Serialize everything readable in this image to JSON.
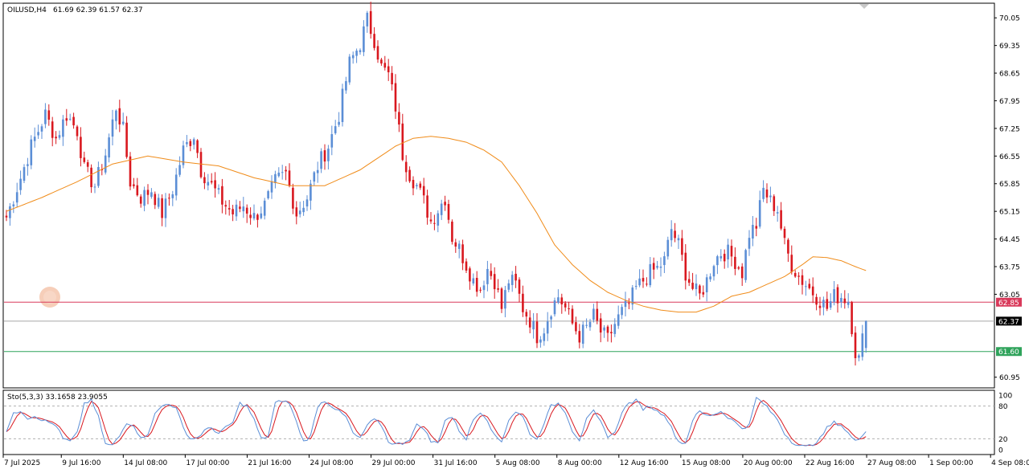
{
  "header": {
    "symbol": "OILUSD,H4",
    "ohlc": "61.69 62.39 61.57 62.37"
  },
  "oscillator": {
    "label": "Sto(5,3,3) 33.1658 23.9055",
    "ticks": [
      "100",
      "80",
      "20",
      "0"
    ],
    "levels": [
      100,
      80,
      20,
      0
    ]
  },
  "colors": {
    "bull": "#5b8ed6",
    "bear": "#d9181f",
    "ma": "#f08c1a",
    "stoch_main": "#5b8ed6",
    "stoch_signal": "#d9181f",
    "resistance": "#d93a5b",
    "current": "#9a9a9a",
    "support": "#2fa35b"
  },
  "price_tags": {
    "resistance": "62.85",
    "current": "62.37",
    "support": "61.60"
  },
  "chart_data": {
    "type": "candlestick",
    "ylim": [
      60.7,
      70.4
    ],
    "y_ticks": [
      "70.05",
      "69.35",
      "68.65",
      "67.95",
      "67.25",
      "66.55",
      "65.85",
      "65.15",
      "64.45",
      "63.75",
      "63.05",
      "60.95"
    ],
    "y_tick_values": [
      70.05,
      69.35,
      68.65,
      67.95,
      67.25,
      66.55,
      65.85,
      65.15,
      64.45,
      63.75,
      63.05,
      60.95
    ],
    "x_ticks": [
      "7 Jul 2025",
      "9 Jul 16:00",
      "14 Jul 08:00",
      "17 Jul 00:00",
      "21 Jul 16:00",
      "24 Jul 08:00",
      "29 Jul 00:00",
      "31 Jul 16:00",
      "5 Aug 08:00",
      "8 Aug 00:00",
      "12 Aug 16:00",
      "15 Aug 08:00",
      "20 Aug 00:00",
      "22 Aug 16:00",
      "27 Aug 08:00",
      "1 Sep 00:00",
      "4 Sep 08:00"
    ],
    "x_tick_bar_index": [
      0,
      15,
      31,
      47,
      63,
      79,
      95,
      111,
      127,
      143,
      159,
      175,
      191,
      207,
      223,
      239,
      255
    ],
    "horizontal_levels": [
      62.85,
      62.37,
      61.6
    ],
    "price_anchors": [
      [
        0,
        65.0
      ],
      [
        4,
        66.0
      ],
      [
        7,
        66.8
      ],
      [
        11,
        67.6
      ],
      [
        14,
        67.0
      ],
      [
        17,
        67.6
      ],
      [
        20,
        67.2
      ],
      [
        22,
        66.2
      ],
      [
        25,
        65.8
      ],
      [
        28,
        66.6
      ],
      [
        31,
        67.8
      ],
      [
        33,
        67.2
      ],
      [
        35,
        65.9
      ],
      [
        38,
        65.5
      ],
      [
        41,
        65.7
      ],
      [
        44,
        65.1
      ],
      [
        47,
        65.7
      ],
      [
        50,
        66.7
      ],
      [
        53,
        67.1
      ],
      [
        55,
        66.2
      ],
      [
        58,
        65.8
      ],
      [
        61,
        65.4
      ],
      [
        64,
        65.1
      ],
      [
        67,
        65.3
      ],
      [
        70,
        65.0
      ],
      [
        73,
        65.3
      ],
      [
        76,
        65.9
      ],
      [
        79,
        66.1
      ],
      [
        82,
        65.1
      ],
      [
        85,
        65.5
      ],
      [
        88,
        66.3
      ],
      [
        91,
        66.8
      ],
      [
        94,
        67.6
      ],
      [
        97,
        68.9
      ],
      [
        100,
        69.4
      ],
      [
        102,
        70.0
      ],
      [
        104,
        69.5
      ],
      [
        106,
        68.8
      ],
      [
        108,
        68.6
      ],
      [
        110,
        67.8
      ],
      [
        112,
        66.6
      ],
      [
        114,
        66.1
      ],
      [
        116,
        65.8
      ],
      [
        118,
        65.4
      ],
      [
        120,
        64.9
      ],
      [
        122,
        65.2
      ],
      [
        124,
        65.5
      ],
      [
        126,
        64.5
      ],
      [
        128,
        64.2
      ],
      [
        130,
        63.8
      ],
      [
        132,
        63.4
      ],
      [
        134,
        63.2
      ],
      [
        136,
        63.7
      ],
      [
        138,
        63.4
      ],
      [
        140,
        62.7
      ],
      [
        142,
        63.4
      ],
      [
        144,
        63.3
      ],
      [
        146,
        62.7
      ],
      [
        148,
        62.4
      ],
      [
        150,
        62.0
      ],
      [
        152,
        62.2
      ],
      [
        154,
        62.7
      ],
      [
        156,
        63.0
      ],
      [
        158,
        62.7
      ],
      [
        160,
        62.3
      ],
      [
        162,
        62.0
      ],
      [
        164,
        62.2
      ],
      [
        166,
        62.5
      ],
      [
        168,
        62.1
      ],
      [
        170,
        61.9
      ],
      [
        172,
        62.3
      ],
      [
        174,
        62.6
      ],
      [
        176,
        62.8
      ],
      [
        178,
        63.2
      ],
      [
        180,
        63.4
      ],
      [
        182,
        63.6
      ],
      [
        184,
        63.7
      ],
      [
        186,
        63.9
      ],
      [
        188,
        64.7
      ],
      [
        190,
        64.3
      ],
      [
        192,
        63.6
      ],
      [
        194,
        63.2
      ],
      [
        196,
        63.0
      ],
      [
        198,
        63.4
      ],
      [
        200,
        63.9
      ],
      [
        202,
        64.1
      ],
      [
        204,
        64.1
      ],
      [
        206,
        63.9
      ],
      [
        208,
        63.6
      ],
      [
        210,
        64.6
      ],
      [
        212,
        64.8
      ],
      [
        214,
        65.7
      ],
      [
        216,
        65.4
      ],
      [
        218,
        65.2
      ],
      [
        220,
        64.3
      ],
      [
        222,
        63.8
      ],
      [
        224,
        63.5
      ],
      [
        226,
        63.3
      ],
      [
        228,
        63.1
      ],
      [
        230,
        62.9
      ],
      [
        232,
        62.7
      ],
      [
        234,
        63.0
      ],
      [
        236,
        63.0
      ],
      [
        238,
        62.9
      ],
      [
        240,
        61.6
      ],
      [
        241,
        61.4
      ],
      [
        242,
        61.9
      ],
      [
        243,
        62.37
      ]
    ],
    "ma_curve": [
      [
        0,
        65.15
      ],
      [
        10,
        65.5
      ],
      [
        20,
        65.9
      ],
      [
        30,
        66.35
      ],
      [
        40,
        66.55
      ],
      [
        50,
        66.4
      ],
      [
        60,
        66.3
      ],
      [
        70,
        66.0
      ],
      [
        80,
        65.8
      ],
      [
        90,
        65.8
      ],
      [
        100,
        66.2
      ],
      [
        110,
        66.8
      ],
      [
        115,
        67.0
      ],
      [
        120,
        67.05
      ],
      [
        125,
        67.0
      ],
      [
        130,
        66.9
      ],
      [
        135,
        66.7
      ],
      [
        140,
        66.4
      ],
      [
        145,
        65.8
      ],
      [
        150,
        65.1
      ],
      [
        155,
        64.3
      ],
      [
        160,
        63.8
      ],
      [
        165,
        63.4
      ],
      [
        170,
        63.1
      ],
      [
        175,
        62.9
      ],
      [
        180,
        62.75
      ],
      [
        185,
        62.65
      ],
      [
        190,
        62.6
      ],
      [
        195,
        62.6
      ],
      [
        200,
        62.75
      ],
      [
        205,
        63.0
      ],
      [
        210,
        63.1
      ],
      [
        215,
        63.3
      ],
      [
        220,
        63.5
      ],
      [
        225,
        63.8
      ],
      [
        228,
        64.0
      ],
      [
        232,
        63.98
      ],
      [
        236,
        63.9
      ],
      [
        240,
        63.75
      ],
      [
        243,
        63.65
      ]
    ],
    "stoch_anchors": [
      [
        0,
        35
      ],
      [
        2,
        65
      ],
      [
        4,
        72
      ],
      [
        6,
        58
      ],
      [
        8,
        62
      ],
      [
        10,
        55
      ],
      [
        12,
        50
      ],
      [
        14,
        45
      ],
      [
        16,
        20
      ],
      [
        18,
        15
      ],
      [
        20,
        30
      ],
      [
        22,
        85
      ],
      [
        24,
        90
      ],
      [
        26,
        60
      ],
      [
        28,
        10
      ],
      [
        30,
        8
      ],
      [
        32,
        25
      ],
      [
        34,
        50
      ],
      [
        36,
        45
      ],
      [
        38,
        20
      ],
      [
        40,
        30
      ],
      [
        42,
        65
      ],
      [
        44,
        80
      ],
      [
        46,
        85
      ],
      [
        48,
        75
      ],
      [
        50,
        40
      ],
      [
        52,
        20
      ],
      [
        54,
        22
      ],
      [
        56,
        35
      ],
      [
        58,
        40
      ],
      [
        60,
        30
      ],
      [
        62,
        40
      ],
      [
        64,
        50
      ],
      [
        66,
        85
      ],
      [
        68,
        80
      ],
      [
        70,
        55
      ],
      [
        72,
        20
      ],
      [
        74,
        25
      ],
      [
        76,
        85
      ],
      [
        78,
        90
      ],
      [
        80,
        85
      ],
      [
        82,
        50
      ],
      [
        84,
        15
      ],
      [
        86,
        25
      ],
      [
        88,
        80
      ],
      [
        90,
        90
      ],
      [
        92,
        80
      ],
      [
        94,
        70
      ],
      [
        96,
        60
      ],
      [
        98,
        30
      ],
      [
        100,
        20
      ],
      [
        102,
        45
      ],
      [
        104,
        55
      ],
      [
        106,
        45
      ],
      [
        108,
        15
      ],
      [
        110,
        10
      ],
      [
        112,
        12
      ],
      [
        114,
        20
      ],
      [
        116,
        45
      ],
      [
        118,
        40
      ],
      [
        120,
        15
      ],
      [
        122,
        12
      ],
      [
        124,
        55
      ],
      [
        126,
        60
      ],
      [
        128,
        35
      ],
      [
        130,
        20
      ],
      [
        132,
        55
      ],
      [
        134,
        70
      ],
      [
        136,
        55
      ],
      [
        138,
        25
      ],
      [
        140,
        15
      ],
      [
        142,
        55
      ],
      [
        144,
        70
      ],
      [
        146,
        60
      ],
      [
        148,
        30
      ],
      [
        150,
        18
      ],
      [
        152,
        50
      ],
      [
        154,
        80
      ],
      [
        156,
        85
      ],
      [
        158,
        70
      ],
      [
        160,
        35
      ],
      [
        162,
        18
      ],
      [
        164,
        55
      ],
      [
        166,
        70
      ],
      [
        168,
        50
      ],
      [
        170,
        25
      ],
      [
        172,
        30
      ],
      [
        174,
        70
      ],
      [
        176,
        85
      ],
      [
        178,
        90
      ],
      [
        180,
        75
      ],
      [
        182,
        80
      ],
      [
        184,
        70
      ],
      [
        186,
        65
      ],
      [
        188,
        40
      ],
      [
        190,
        15
      ],
      [
        192,
        12
      ],
      [
        194,
        55
      ],
      [
        196,
        70
      ],
      [
        198,
        62
      ],
      [
        200,
        65
      ],
      [
        202,
        70
      ],
      [
        204,
        60
      ],
      [
        206,
        50
      ],
      [
        208,
        40
      ],
      [
        210,
        45
      ],
      [
        212,
        95
      ],
      [
        214,
        85
      ],
      [
        216,
        70
      ],
      [
        218,
        55
      ],
      [
        220,
        30
      ],
      [
        222,
        15
      ],
      [
        224,
        8
      ],
      [
        226,
        5
      ],
      [
        228,
        10
      ],
      [
        230,
        20
      ],
      [
        232,
        40
      ],
      [
        234,
        50
      ],
      [
        236,
        45
      ],
      [
        238,
        30
      ],
      [
        240,
        15
      ],
      [
        241,
        20
      ],
      [
        242,
        28
      ],
      [
        243,
        33.1658
      ]
    ]
  }
}
